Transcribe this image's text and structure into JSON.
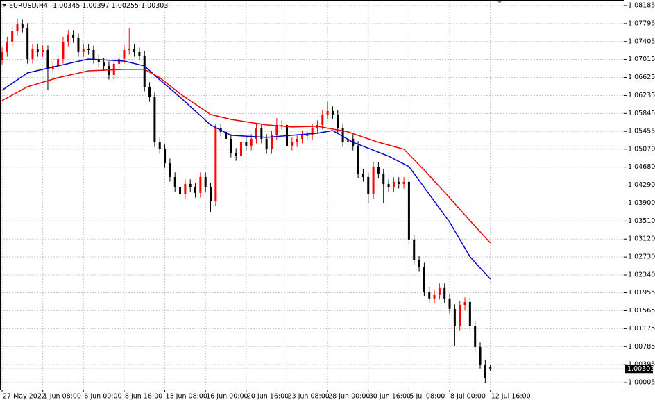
{
  "chart_data": {
    "type": "candlestick",
    "up_color": "#ff0000",
    "down_color": "#000000",
    "grid": true,
    "ylim": [
      0.99855,
      1.08305
    ],
    "yticks": [
      1.08185,
      1.07795,
      1.07405,
      1.07015,
      1.06625,
      1.06235,
      1.05845,
      1.05455,
      {
        "value": 1.0507,
        "label": "1.05070"
      },
      {
        "value": 1.0468,
        "label": "1.04680"
      },
      {
        "value": 1.0429,
        "label": "1.04290"
      },
      {
        "value": 1.039,
        "label": "1.03900"
      },
      {
        "value": 1.0351,
        "label": "1.03510"
      },
      {
        "value": 1.0312,
        "label": "1.03120"
      },
      {
        "value": 1.0273,
        "label": "1.02730"
      },
      {
        "value": 1.0234,
        "label": "1.02340"
      },
      1.01955,
      1.01565,
      1.01175,
      1.00785,
      1.00395,
      1.00005
    ],
    "categories": [
      "27 May 2022",
      null,
      null,
      null,
      null,
      null,
      null,
      null,
      "1 Jun 08:00",
      null,
      null,
      null,
      null,
      null,
      null,
      null,
      "6 Jun 00:00",
      null,
      null,
      null,
      null,
      null,
      null,
      null,
      "8 Jun 16:00",
      null,
      null,
      null,
      null,
      null,
      null,
      null,
      "13 Jun 08:00",
      null,
      null,
      null,
      null,
      null,
      null,
      null,
      "16 Jun 00:00",
      null,
      null,
      null,
      null,
      null,
      null,
      null,
      "20 Jun 16:00",
      null,
      null,
      null,
      null,
      null,
      null,
      null,
      "23 Jun 08:00",
      null,
      null,
      null,
      null,
      null,
      null,
      null,
      "28 Jun 00:00",
      null,
      null,
      null,
      null,
      null,
      null,
      null,
      "30 Jun 16:00",
      null,
      null,
      null,
      null,
      null,
      null,
      null,
      "5 Jul 08:00",
      null,
      null,
      null,
      null,
      null,
      null,
      null,
      "8 Jul 00:00",
      null,
      null,
      null,
      null,
      null,
      null,
      null,
      "12 Jul 16:00"
    ],
    "series": [
      {
        "name": "EURUSD,H4",
        "open": [
          1.07,
          1.07176,
          1.07402,
          1.07628,
          1.07778,
          1.07703,
          1.07025,
          1.07251,
          1.07176,
          1.07221,
          1.068,
          1.06875,
          1.07025,
          1.07402,
          1.07553,
          1.07477,
          1.07176,
          1.07251,
          1.07221,
          1.07025,
          1.0695,
          1.06875,
          1.06679,
          1.0692,
          1.07025,
          1.07221,
          1.07251,
          1.07176,
          1.07101,
          1.06423,
          1.06197,
          1.05218,
          1.05068,
          1.04766,
          1.04465,
          1.04239,
          1.04089,
          1.04315,
          1.04239,
          1.04119,
          1.04465,
          1.04239,
          1.03938,
          1.05519,
          1.05444,
          1.05294,
          1.04992,
          1.04917,
          1.05218,
          1.05143,
          1.05294,
          1.05519,
          1.05294,
          1.05068,
          1.05369,
          1.05595,
          1.05595,
          1.05143,
          1.05218,
          1.05294,
          1.05369,
          1.05369,
          1.05519,
          1.05595,
          1.05821,
          1.05896,
          1.05821,
          1.05519,
          1.05218,
          1.05294,
          1.05143,
          1.04541,
          1.04465,
          1.04089,
          1.04691,
          1.04541,
          1.04315,
          1.04239,
          1.0436,
          1.04315,
          1.0436,
          1.0311,
          1.02658,
          1.02507,
          1.0198,
          1.0183,
          1.01905,
          1.02056,
          1.0183,
          1.01604,
          1.01227,
          1.01679,
          1.01754,
          1.01227,
          1.00776,
          1.00399,
          1.00345
        ],
        "high": [
          1.07276,
          1.07502,
          1.07728,
          1.079,
          1.07878,
          1.07803,
          1.07351,
          1.07351,
          1.07321,
          1.07321,
          1.06975,
          1.07125,
          1.07502,
          1.07653,
          1.07653,
          1.07577,
          1.07351,
          1.07351,
          1.07321,
          1.07125,
          1.0705,
          1.06975,
          1.0702,
          1.07125,
          1.07321,
          1.077,
          1.07351,
          1.07276,
          1.07201,
          1.06523,
          1.06297,
          1.05318,
          1.05168,
          1.04866,
          1.04565,
          1.04339,
          1.04415,
          1.04415,
          1.04339,
          1.04565,
          1.04565,
          1.04339,
          1.05619,
          1.05619,
          1.05544,
          1.05394,
          1.05092,
          1.05318,
          1.05318,
          1.05394,
          1.05619,
          1.05619,
          1.05394,
          1.05469,
          1.05745,
          1.05695,
          1.05695,
          1.05318,
          1.05394,
          1.05469,
          1.05469,
          1.05619,
          1.05695,
          1.05921,
          1.061,
          1.05996,
          1.05921,
          1.05619,
          1.05394,
          1.05394,
          1.05243,
          1.04641,
          1.04565,
          1.04791,
          1.04791,
          1.04641,
          1.04415,
          1.0446,
          1.0446,
          1.0446,
          1.0446,
          1.0321,
          1.02758,
          1.02607,
          1.0208,
          1.02005,
          1.02156,
          1.02156,
          1.0193,
          1.01704,
          1.01779,
          1.01854,
          1.01854,
          1.01327,
          1.00876,
          1.00498,
          1.00397
        ],
        "low": [
          1.069,
          1.07076,
          1.07302,
          1.07528,
          1.07603,
          1.06925,
          1.06925,
          1.07076,
          1.07076,
          1.0635,
          1.067,
          1.06775,
          1.06925,
          1.07302,
          1.07377,
          1.07076,
          1.07076,
          1.07121,
          1.06925,
          1.0685,
          1.06775,
          1.06579,
          1.06579,
          1.0682,
          1.06925,
          1.07121,
          1.07076,
          1.07001,
          1.06323,
          1.06097,
          1.05118,
          1.04968,
          1.04666,
          1.04365,
          1.04139,
          1.03989,
          1.03989,
          1.04139,
          1.04019,
          1.04019,
          1.04139,
          1.037,
          1.03838,
          1.05344,
          1.05194,
          1.04892,
          1.04817,
          1.04817,
          1.05043,
          1.05043,
          1.05194,
          1.05194,
          1.04968,
          1.04968,
          1.05269,
          1.05495,
          1.05043,
          1.05043,
          1.05118,
          1.05194,
          1.05269,
          1.05269,
          1.05419,
          1.05495,
          1.05721,
          1.05721,
          1.05419,
          1.05118,
          1.05118,
          1.05043,
          1.04441,
          1.04365,
          1.039,
          1.03989,
          1.04441,
          1.039,
          1.04139,
          1.04139,
          1.04215,
          1.04215,
          1.0301,
          1.02558,
          1.02407,
          1.0188,
          1.0173,
          1.0173,
          1.01805,
          1.0173,
          1.01504,
          1.008,
          1.01127,
          1.01579,
          1.01127,
          1.00676,
          1.00299,
          0.99998,
          1.00255
        ],
        "close": [
          1.07176,
          1.07402,
          1.07628,
          1.07778,
          1.07703,
          1.07025,
          1.07251,
          1.07176,
          1.07221,
          1.068,
          1.06875,
          1.07025,
          1.07402,
          1.07553,
          1.07477,
          1.07176,
          1.07251,
          1.07221,
          1.07025,
          1.0695,
          1.06875,
          1.06679,
          1.0692,
          1.07025,
          1.07221,
          1.07251,
          1.07176,
          1.07101,
          1.06423,
          1.06197,
          1.05218,
          1.05068,
          1.04766,
          1.04465,
          1.04239,
          1.04089,
          1.04315,
          1.04239,
          1.04119,
          1.04465,
          1.04239,
          1.03938,
          1.05519,
          1.05444,
          1.05294,
          1.04992,
          1.04917,
          1.05218,
          1.05143,
          1.05294,
          1.05519,
          1.05294,
          1.05068,
          1.05369,
          1.05595,
          1.05595,
          1.05143,
          1.05218,
          1.05294,
          1.05369,
          1.05369,
          1.05519,
          1.05595,
          1.05821,
          1.05896,
          1.05821,
          1.05519,
          1.05218,
          1.05294,
          1.05143,
          1.04541,
          1.04465,
          1.04089,
          1.04691,
          1.04541,
          1.04315,
          1.04239,
          1.0436,
          1.04315,
          1.0436,
          1.0311,
          1.02658,
          1.02507,
          1.0198,
          1.0183,
          1.01905,
          1.02056,
          1.0183,
          1.01604,
          1.01227,
          1.01679,
          1.01754,
          1.01227,
          1.00776,
          1.00399,
          1.00098,
          1.00303
        ]
      }
    ],
    "lines": [
      {
        "color": "#0000cc",
        "x": [
          0,
          5,
          11,
          17,
          24,
          28,
          31,
          35,
          41,
          45,
          52,
          57,
          62,
          65,
          69,
          76,
          80,
          84,
          88,
          92,
          96
        ],
        "values": [
          1.06348,
          1.06724,
          1.06875,
          1.07025,
          1.0698,
          1.06875,
          1.06574,
          1.06197,
          1.05595,
          1.05369,
          1.05324,
          1.05369,
          1.05414,
          1.05474,
          1.05218,
          1.04917,
          1.04691,
          1.04089,
          1.03486,
          1.02733,
          1.02251
        ]
      },
      {
        "color": "#ee0000",
        "x": [
          0,
          5,
          11,
          17,
          24,
          28,
          31,
          35,
          41,
          45,
          52,
          57,
          62,
          68,
          74,
          79,
          83,
          88,
          92,
          96
        ],
        "values": [
          1.06122,
          1.06423,
          1.06619,
          1.06769,
          1.068,
          1.068,
          1.06619,
          1.06272,
          1.05821,
          1.05715,
          1.05595,
          1.0555,
          1.05565,
          1.05444,
          1.05218,
          1.05068,
          1.04616,
          1.04013,
          1.03516,
          1.03035
        ]
      }
    ]
  }
}
